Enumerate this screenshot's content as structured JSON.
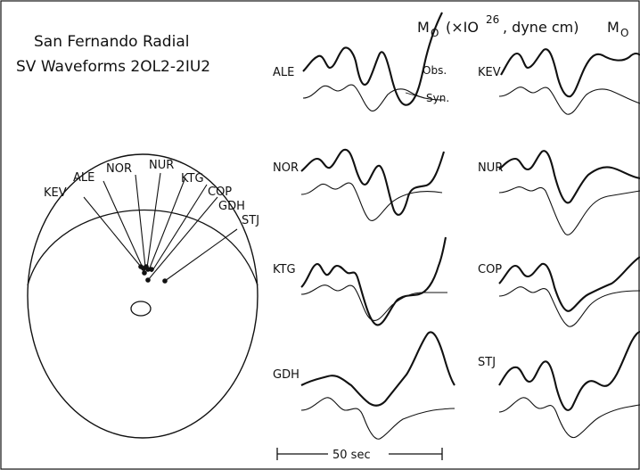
{
  "title": {
    "line1": "San Fernando Radial",
    "line2": "SV Waveforms 2OL2-2IU2"
  },
  "moment_header": {
    "left_prefix": "M",
    "left_sub": "O",
    "left_paren": "(×IO",
    "left_exp": "26",
    "left_units": ", dyne cm)",
    "right_prefix": "M",
    "right_sub": "O"
  },
  "map": {
    "stations": [
      "KEV",
      "ALE",
      "NOR",
      "NUR",
      "KTG",
      "COP",
      "GDH",
      "STJ"
    ]
  },
  "trace_legend": {
    "observed": "Obs.",
    "synthetic": "Syn."
  },
  "waveforms": {
    "left_column": [
      "ALE",
      "NOR",
      "KTG",
      "GDH"
    ],
    "right_column": [
      "KEV",
      "NUR",
      "COP",
      "STJ"
    ]
  },
  "scale_bar": {
    "label": "50 sec"
  }
}
